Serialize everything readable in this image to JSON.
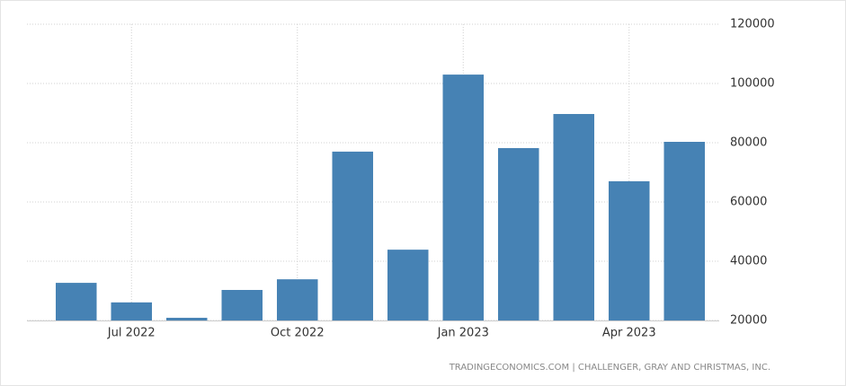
{
  "chart_data": {
    "type": "bar",
    "categories": [
      null,
      "Jul 2022",
      null,
      null,
      "Oct 2022",
      null,
      null,
      "Jan 2023",
      null,
      null,
      "Apr 2023",
      null
    ],
    "values": [
      32700,
      26100,
      20900,
      30300,
      33900,
      77000,
      43900,
      103000,
      78200,
      89700,
      67000,
      80300
    ],
    "color": "#4682b4",
    "ylim": [
      20000,
      120000
    ],
    "yticks": [
      20000,
      40000,
      60000,
      80000,
      100000,
      120000
    ],
    "grid": true,
    "source": "TRADINGECONOMICS.COM | CHALLENGER, GRAY AND CHRISTMAS, INC."
  }
}
